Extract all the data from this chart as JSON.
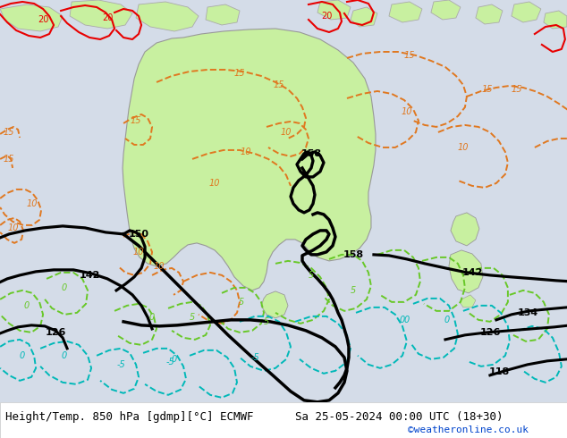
{
  "title_left": "Height/Temp. 850 hPa [gdmp][°C] ECMWF",
  "title_right": "Sa 25-05-2024 00:00 UTC (18+30)",
  "credit": "©weatheronline.co.uk",
  "bg_color": "#d4dce8",
  "ocean_color": "#d4dce8",
  "land_color": "#c8c8c8",
  "australia_color": "#c8f0a0",
  "nz_color": "#c8f0a0",
  "island_color": "#c8f0a0",
  "coast_color": "#aaaaaa",
  "bottom_bar_color": "#ffffff",
  "title_fontsize": 9,
  "credit_color": "#0044cc",
  "label_fontsize": 8,
  "orange": "#e07820",
  "green": "#68c828",
  "cyan": "#00b8b8",
  "red": "#e80000"
}
